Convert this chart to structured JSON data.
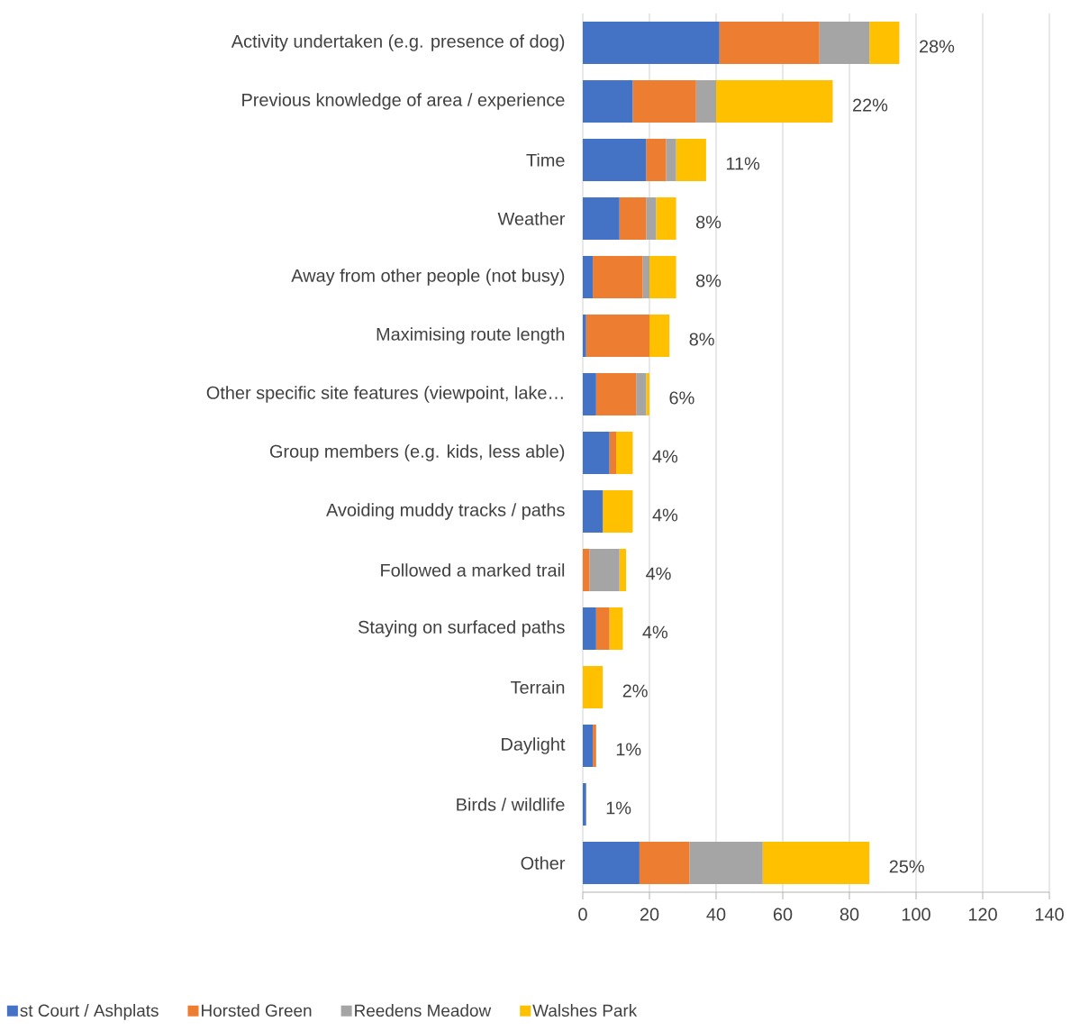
{
  "chart_data": {
    "type": "bar",
    "orientation": "horizontal",
    "stacked": true,
    "categories": [
      "Activity undertaken (e.g. presence of dog)",
      "Previous knowledge of area / experience",
      "Time",
      "Weather",
      "Away from other people (not busy)",
      "Maximising route length",
      "Other specific site features (viewpoint, lake…",
      "Group members (e.g. kids, less able)",
      "Avoiding muddy tracks / paths",
      "Followed a marked trail",
      "Staying on surfaced paths",
      "Terrain",
      "Daylight",
      "Birds / wildlife",
      "Other"
    ],
    "series": [
      {
        "name": "st Court / Ashplats",
        "color": "#4472c4",
        "values": [
          41,
          15,
          19,
          11,
          3,
          1,
          4,
          8,
          6,
          0,
          4,
          0,
          3,
          1,
          17
        ]
      },
      {
        "name": "Horsted Green",
        "color": "#ed7d31",
        "values": [
          30,
          19,
          6,
          8,
          15,
          19,
          12,
          2,
          0,
          2,
          4,
          0,
          1,
          0,
          15
        ]
      },
      {
        "name": "Reedens Meadow",
        "color": "#a5a5a5",
        "values": [
          15,
          6,
          3,
          3,
          2,
          0,
          3,
          0,
          0,
          9,
          0,
          0,
          0,
          0,
          22
        ]
      },
      {
        "name": "Walshes Park",
        "color": "#ffc000",
        "values": [
          9,
          35,
          9,
          6,
          8,
          6,
          1,
          5,
          9,
          2,
          4,
          6,
          0,
          0,
          32
        ]
      }
    ],
    "annotations": [
      "28%",
      "22%",
      "11%",
      "8%",
      "8%",
      "8%",
      "6%",
      "4%",
      "4%",
      "4%",
      "4%",
      "2%",
      "1%",
      "1%",
      "25%"
    ],
    "xlim": [
      0,
      140
    ],
    "xticks": [
      0,
      20,
      40,
      60,
      80,
      100,
      120,
      140
    ],
    "grid": "x",
    "legend": "bottom"
  }
}
